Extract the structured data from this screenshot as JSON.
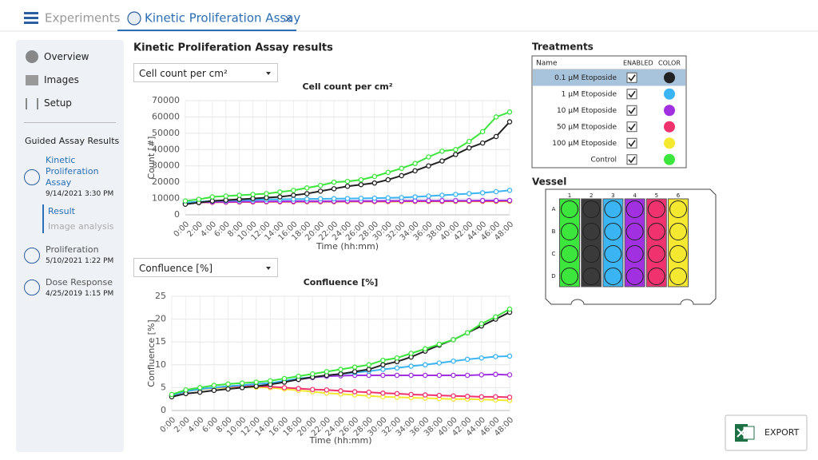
{
  "header": {
    "menu_label": "Experiments",
    "tab_title": "Kinetic Proliferation Assay",
    "close": "×"
  },
  "sidebar": {
    "nav": [
      "Overview",
      "Images",
      "Setup"
    ],
    "section_title": "Guided Assay Results",
    "results": [
      {
        "title": "Kinetic Proliferation Assay",
        "date": "9/14/2021 3:30 PM",
        "sub": [
          "Result",
          "Image analysis"
        ]
      },
      {
        "title": "Proliferation",
        "date": "5/10/2021 1:22 PM"
      },
      {
        "title": "Dose Response",
        "date": "4/25/2019 1:15 PM"
      }
    ]
  },
  "main_title": "Kinetic Proliferation Assay results",
  "dropdowns": [
    "Cell count per cm²",
    "Confluence [%]"
  ],
  "chart_data": [
    {
      "type": "line",
      "title": "Cell count per cm²",
      "x_label": "Time (hh:mm)",
      "y_label": "Count [#]",
      "categories": [
        "0:00",
        "2:00",
        "4:00",
        "6:00",
        "8:00",
        "10:00",
        "12:00",
        "14:00",
        "16:00",
        "18:00",
        "20:00",
        "22:00",
        "24:00",
        "26:00",
        "28:00",
        "30:00",
        "32:00",
        "34:00",
        "36:00",
        "38:00",
        "40:00",
        "42:00",
        "44:00",
        "46:00",
        "48:00"
      ],
      "ylim": [
        0,
        70000
      ],
      "yticks": [
        0,
        10000,
        20000,
        30000,
        40000,
        50000,
        60000,
        70000
      ],
      "grid": true,
      "series": [
        {
          "color": "#f5e830",
          "values": [
            7500,
            7600,
            7700,
            7800,
            7800,
            7900,
            7900,
            8000,
            8000,
            8000,
            8000,
            8000,
            8100,
            8100,
            8100,
            8100,
            8100,
            8200,
            8200,
            8200,
            8200,
            8200,
            8200,
            8200,
            8200
          ]
        },
        {
          "color": "#f0326e",
          "values": [
            7000,
            7500,
            7700,
            7800,
            7900,
            7900,
            8000,
            8000,
            8000,
            8100,
            8100,
            8100,
            8200,
            8200,
            8200,
            8200,
            8300,
            8300,
            8300,
            8300,
            8400,
            8400,
            8400,
            8400,
            8500
          ]
        },
        {
          "color": "#a030e0",
          "values": [
            7200,
            7700,
            7900,
            8000,
            8100,
            8200,
            8200,
            8300,
            8300,
            8400,
            8400,
            8400,
            8500,
            8500,
            8500,
            8600,
            8600,
            8600,
            8700,
            8700,
            8700,
            8700,
            8800,
            8800,
            8800
          ]
        },
        {
          "color": "#3ab4f2",
          "values": [
            7500,
            8000,
            8500,
            8800,
            9000,
            9200,
            9400,
            9500,
            9600,
            9700,
            9800,
            9900,
            10000,
            10100,
            10200,
            10400,
            10600,
            11000,
            11500,
            12000,
            12500,
            13000,
            13500,
            14200,
            15000
          ]
        },
        {
          "color": "#222222",
          "values": [
            6500,
            7500,
            8500,
            9000,
            9500,
            10000,
            10500,
            11000,
            12000,
            13000,
            14500,
            16000,
            17500,
            18500,
            19500,
            21500,
            24000,
            27000,
            30000,
            33000,
            37000,
            41000,
            44000,
            48000,
            57000
          ]
        },
        {
          "color": "#3ce63c",
          "values": [
            8500,
            9500,
            11000,
            11500,
            12000,
            12500,
            13000,
            14000,
            15000,
            16500,
            18000,
            20000,
            20500,
            21500,
            23500,
            26000,
            28500,
            31500,
            35500,
            39000,
            40000,
            45000,
            51000,
            60000,
            63000
          ]
        }
      ]
    },
    {
      "type": "line",
      "title": "Confluence [%]",
      "x_label": "Time (hh:mm)",
      "y_label": "Confluence [%]",
      "categories": [
        "0:00",
        "2:00",
        "4:00",
        "6:00",
        "8:00",
        "10:00",
        "12:00",
        "14:00",
        "16:00",
        "18:00",
        "20:00",
        "22:00",
        "24:00",
        "26:00",
        "28:00",
        "30:00",
        "32:00",
        "34:00",
        "36:00",
        "38:00",
        "40:00",
        "42:00",
        "44:00",
        "46:00",
        "48:00"
      ],
      "ylim": [
        0,
        25
      ],
      "yticks": [
        0,
        5,
        10,
        15,
        20,
        25
      ],
      "grid": true,
      "series": [
        {
          "color": "#f5e830",
          "values": [
            3.3,
            4.2,
            4.6,
            4.9,
            5,
            5.1,
            5.1,
            5,
            4.7,
            4.4,
            4.1,
            3.8,
            3.6,
            3.4,
            3.2,
            3,
            2.9,
            2.8,
            2.7,
            2.6,
            2.5,
            2.5,
            2.4,
            2.3,
            2.2
          ]
        },
        {
          "color": "#f0326e",
          "values": [
            3.3,
            4.2,
            4.7,
            5,
            5.2,
            5.3,
            5.3,
            5.2,
            5,
            4.8,
            4.6,
            4.5,
            4.3,
            4.1,
            4,
            3.8,
            3.7,
            3.5,
            3.4,
            3.3,
            3.2,
            3.1,
            3,
            3,
            2.9
          ]
        },
        {
          "color": "#a030e0",
          "values": [
            3.3,
            4.2,
            4.7,
            5,
            5.3,
            5.5,
            5.8,
            6,
            6.4,
            6.8,
            7.2,
            7.5,
            7.6,
            7.7,
            7.7,
            7.7,
            7.7,
            7.7,
            7.7,
            7.7,
            7.7,
            7.7,
            7.8,
            7.9,
            7.8
          ]
        },
        {
          "color": "#3ab4f2",
          "values": [
            3.3,
            4.2,
            4.7,
            5,
            5.3,
            5.5,
            5.8,
            6,
            6.5,
            7,
            7.3,
            7.7,
            8,
            8.3,
            8.6,
            9,
            9.3,
            9.7,
            10,
            10.4,
            10.8,
            11.2,
            11.5,
            11.8,
            11.9
          ]
        },
        {
          "color": "#222222",
          "values": [
            3,
            3.7,
            4,
            4.4,
            4.7,
            5,
            5.3,
            5.7,
            6.2,
            6.8,
            7.3,
            7.7,
            8,
            8.5,
            9,
            10,
            10.7,
            11.7,
            13,
            14.3,
            15.5,
            17,
            18.5,
            20,
            21.5
          ]
        },
        {
          "color": "#3ce63c",
          "values": [
            3.5,
            4.5,
            5,
            5.5,
            5.8,
            6,
            6.2,
            6.5,
            7,
            7.5,
            8,
            8.5,
            9,
            9.5,
            10,
            11,
            11.5,
            12.5,
            13.5,
            14.5,
            15.5,
            17,
            19,
            20.5,
            22.2
          ]
        }
      ]
    }
  ],
  "treatments": {
    "title": "Treatments",
    "headers": [
      "Name",
      "ENABLED",
      "COLOR"
    ],
    "rows": [
      {
        "name": "0.1 µM Etoposide",
        "enabled": true,
        "color": "#222222",
        "selected": true
      },
      {
        "name": "1 µM Etoposide",
        "enabled": true,
        "color": "#3ab4f2"
      },
      {
        "name": "10 µM Etoposide",
        "enabled": true,
        "color": "#a030e0"
      },
      {
        "name": "50 µM Etoposide",
        "enabled": true,
        "color": "#f0326e"
      },
      {
        "name": "100 µM Etoposide",
        "enabled": true,
        "color": "#f5e830"
      },
      {
        "name": "Control",
        "enabled": true,
        "color": "#3ce63c"
      }
    ]
  },
  "vessel": {
    "title": "Vessel",
    "columns": [
      {
        "label": "1",
        "color": "#3ce63c"
      },
      {
        "label": "2",
        "color": "#3a3a3a"
      },
      {
        "label": "3",
        "color": "#3ab4f2"
      },
      {
        "label": "4",
        "color": "#a030e0"
      },
      {
        "label": "5",
        "color": "#f0326e"
      },
      {
        "label": "6",
        "color": "#f5e830"
      }
    ],
    "rows": [
      "A",
      "B",
      "C",
      "D"
    ]
  },
  "export_label": "EXPORT"
}
